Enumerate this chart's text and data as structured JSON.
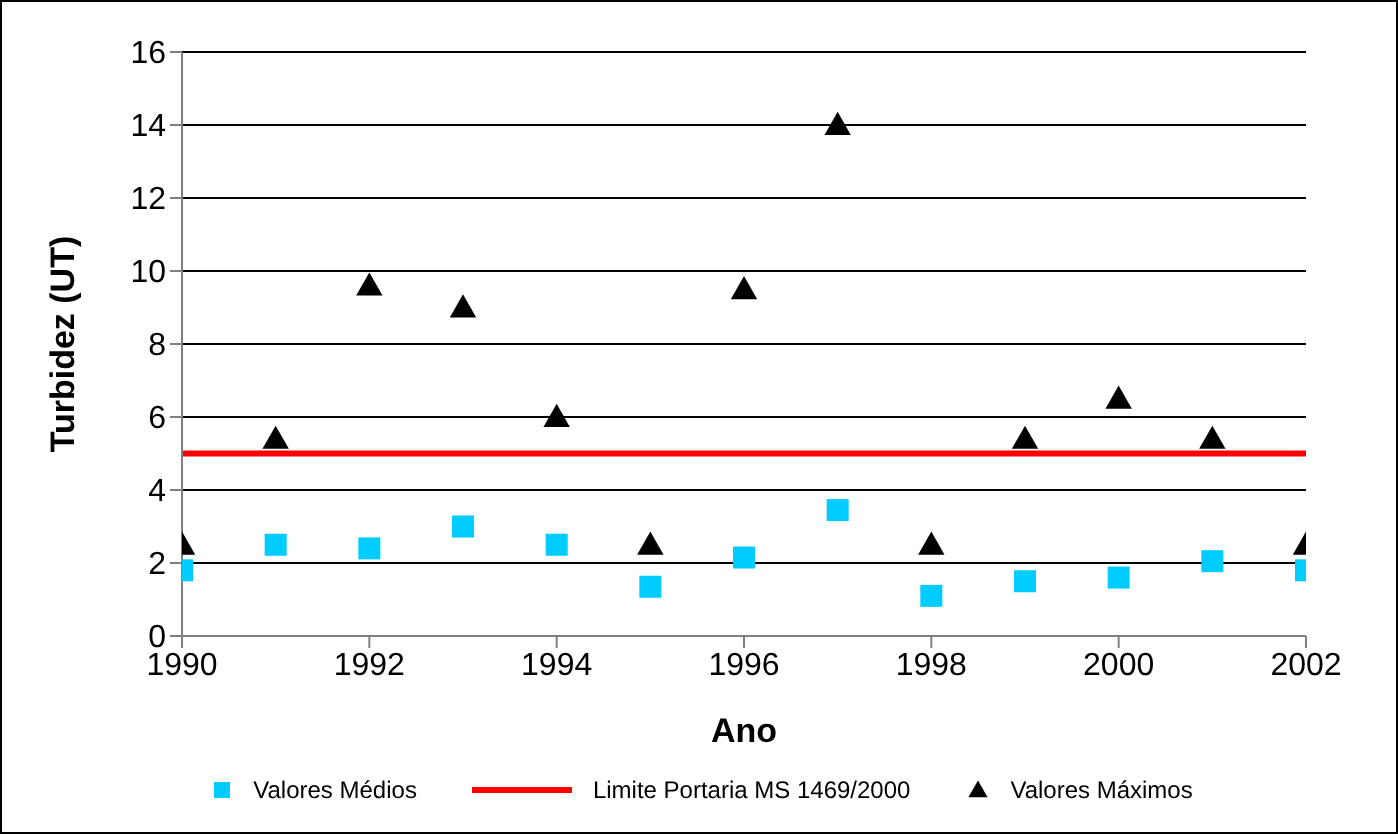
{
  "chart_data": {
    "type": "scatter",
    "xlabel": "Ano",
    "ylabel": "Turbidez (UT)",
    "x": [
      1990,
      1991,
      1992,
      1993,
      1994,
      1995,
      1996,
      1997,
      1998,
      1999,
      2000,
      2001,
      2002
    ],
    "series": [
      {
        "name": "Valores Médios",
        "color": "#00ccff",
        "marker": "square",
        "values": [
          1.8,
          2.5,
          2.4,
          3.0,
          2.5,
          1.35,
          2.15,
          3.45,
          1.1,
          1.5,
          1.6,
          2.05,
          1.8
        ]
      },
      {
        "name": "Limite Portaria MS 1469/2000",
        "type": "line",
        "color": "#ff0000",
        "x": [
          1990,
          2002
        ],
        "values": [
          5,
          5
        ]
      },
      {
        "name": "Valores Máximos",
        "color": "#000000",
        "marker": "triangle",
        "values": [
          2.5,
          5.4,
          9.6,
          9.0,
          6.0,
          2.5,
          9.5,
          14.0,
          2.5,
          5.4,
          6.5,
          5.4,
          2.5
        ]
      }
    ],
    "xlim": [
      1990,
      2002
    ],
    "xticks": [
      1990,
      1992,
      1994,
      1996,
      1998,
      2000,
      2002
    ],
    "ylim": [
      0,
      16
    ],
    "yticks": [
      0,
      2,
      4,
      6,
      8,
      10,
      12,
      14,
      16
    ],
    "grid": "y",
    "legend": "bottom"
  }
}
